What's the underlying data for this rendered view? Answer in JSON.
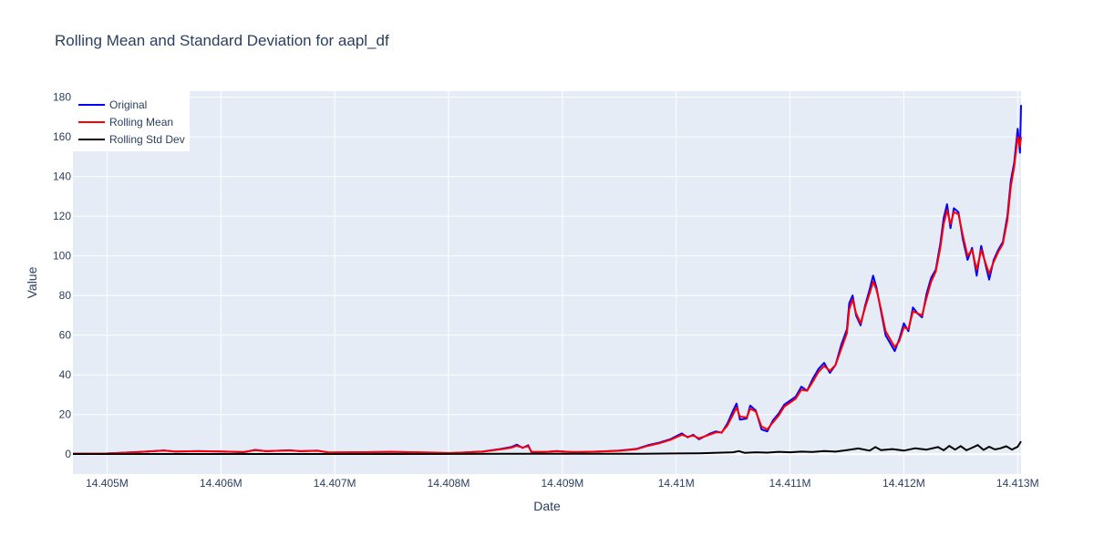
{
  "chart_data": {
    "type": "line",
    "title": "Rolling Mean and Standard Deviation for aapl_df",
    "xlabel": "Date",
    "ylabel": "Value",
    "xlim": [
      14404700,
      14413030
    ],
    "ylim": [
      -10,
      183
    ],
    "x_ticks": [
      {
        "value": 14405000,
        "label": "14.405M"
      },
      {
        "value": 14406000,
        "label": "14.406M"
      },
      {
        "value": 14407000,
        "label": "14.407M"
      },
      {
        "value": 14408000,
        "label": "14.408M"
      },
      {
        "value": 14409000,
        "label": "14.409M"
      },
      {
        "value": 14410000,
        "label": "14.41M"
      },
      {
        "value": 14411000,
        "label": "14.411M"
      },
      {
        "value": 14412000,
        "label": "14.412M"
      },
      {
        "value": 14413000,
        "label": "14.413M"
      }
    ],
    "y_ticks": [
      {
        "value": 0,
        "label": "0"
      },
      {
        "value": 20,
        "label": "20"
      },
      {
        "value": 40,
        "label": "40"
      },
      {
        "value": 60,
        "label": "60"
      },
      {
        "value": 80,
        "label": "80"
      },
      {
        "value": 100,
        "label": "100"
      },
      {
        "value": 120,
        "label": "120"
      },
      {
        "value": 140,
        "label": "140"
      },
      {
        "value": 160,
        "label": "160"
      },
      {
        "value": 180,
        "label": "180"
      }
    ],
    "grid": true,
    "legend_position": "top-left",
    "series": [
      {
        "name": "Original",
        "color": "#0000ff",
        "points": [
          [
            14404700,
            0.3
          ],
          [
            14405000,
            0.4
          ],
          [
            14405300,
            1.2
          ],
          [
            14405500,
            1.9
          ],
          [
            14405600,
            1.3
          ],
          [
            14405800,
            1.6
          ],
          [
            14406000,
            1.4
          ],
          [
            14406200,
            1.0
          ],
          [
            14406300,
            2.2
          ],
          [
            14406400,
            1.5
          ],
          [
            14406600,
            2.0
          ],
          [
            14406700,
            1.5
          ],
          [
            14406850,
            1.8
          ],
          [
            14406950,
            0.8
          ],
          [
            14407200,
            1.0
          ],
          [
            14407500,
            1.2
          ],
          [
            14407800,
            0.8
          ],
          [
            14408000,
            0.5
          ],
          [
            14408150,
            0.9
          ],
          [
            14408300,
            1.4
          ],
          [
            14408450,
            2.6
          ],
          [
            14408550,
            3.6
          ],
          [
            14408600,
            4.8
          ],
          [
            14408650,
            3.2
          ],
          [
            14408700,
            4.5
          ],
          [
            14408730,
            0.9
          ],
          [
            14408850,
            1.1
          ],
          [
            14408950,
            1.6
          ],
          [
            14409100,
            1.0
          ],
          [
            14409300,
            1.3
          ],
          [
            14409500,
            1.8
          ],
          [
            14409650,
            2.7
          ],
          [
            14409750,
            4.5
          ],
          [
            14409850,
            5.8
          ],
          [
            14409950,
            7.6
          ],
          [
            14410050,
            10.5
          ],
          [
            14410100,
            8.5
          ],
          [
            14410150,
            9.8
          ],
          [
            14410200,
            7.5
          ],
          [
            14410300,
            10.5
          ],
          [
            14410350,
            11.5
          ],
          [
            14410400,
            10.8
          ],
          [
            14410450,
            15.5
          ],
          [
            14410500,
            22.0
          ],
          [
            14410530,
            25.5
          ],
          [
            14410560,
            17.5
          ],
          [
            14410620,
            18.0
          ],
          [
            14410650,
            24.5
          ],
          [
            14410700,
            22.0
          ],
          [
            14410750,
            12.5
          ],
          [
            14410800,
            11.5
          ],
          [
            14410850,
            17.0
          ],
          [
            14410900,
            20.5
          ],
          [
            14410950,
            25.0
          ],
          [
            14411000,
            27.0
          ],
          [
            14411050,
            29.0
          ],
          [
            14411100,
            34.0
          ],
          [
            14411150,
            32.0
          ],
          [
            14411200,
            38.0
          ],
          [
            14411250,
            43.0
          ],
          [
            14411300,
            46.0
          ],
          [
            14411350,
            41.0
          ],
          [
            14411400,
            45.0
          ],
          [
            14411450,
            55.0
          ],
          [
            14411500,
            63.0
          ],
          [
            14411520,
            76.0
          ],
          [
            14411550,
            80.0
          ],
          [
            14411580,
            70.0
          ],
          [
            14411620,
            65.0
          ],
          [
            14411660,
            75.0
          ],
          [
            14411700,
            83.0
          ],
          [
            14411730,
            90.0
          ],
          [
            14411760,
            84.0
          ],
          [
            14411800,
            72.0
          ],
          [
            14411840,
            60.0
          ],
          [
            14411880,
            56.0
          ],
          [
            14411920,
            52.0
          ],
          [
            14411960,
            58.0
          ],
          [
            14412000,
            66.0
          ],
          [
            14412040,
            62.0
          ],
          [
            14412080,
            74.0
          ],
          [
            14412120,
            71.0
          ],
          [
            14412160,
            69.0
          ],
          [
            14412200,
            81.0
          ],
          [
            14412240,
            89.0
          ],
          [
            14412280,
            93.0
          ],
          [
            14412320,
            106.0
          ],
          [
            14412350,
            119.0
          ],
          [
            14412380,
            126.0
          ],
          [
            14412410,
            114.0
          ],
          [
            14412440,
            124.0
          ],
          [
            14412480,
            122.0
          ],
          [
            14412520,
            108.0
          ],
          [
            14412560,
            98.0
          ],
          [
            14412600,
            104.0
          ],
          [
            14412640,
            90.0
          ],
          [
            14412680,
            105.0
          ],
          [
            14412720,
            95.0
          ],
          [
            14412750,
            88.0
          ],
          [
            14412790,
            98.0
          ],
          [
            14412830,
            103.0
          ],
          [
            14412870,
            107.0
          ],
          [
            14412910,
            120.0
          ],
          [
            14412940,
            138.0
          ],
          [
            14412970,
            147.0
          ],
          [
            14413000,
            164.0
          ],
          [
            14413020,
            152.0
          ],
          [
            14413030,
            176.0
          ]
        ]
      },
      {
        "name": "Rolling Mean",
        "color": "#ff0000",
        "points": [
          [
            14404700,
            0.3
          ],
          [
            14405000,
            0.4
          ],
          [
            14405300,
            1.1
          ],
          [
            14405500,
            1.8
          ],
          [
            14405600,
            1.4
          ],
          [
            14405800,
            1.5
          ],
          [
            14406000,
            1.4
          ],
          [
            14406200,
            1.1
          ],
          [
            14406300,
            2.0
          ],
          [
            14406400,
            1.6
          ],
          [
            14406600,
            1.9
          ],
          [
            14406700,
            1.6
          ],
          [
            14406850,
            1.7
          ],
          [
            14406950,
            0.9
          ],
          [
            14407200,
            1.0
          ],
          [
            14407500,
            1.2
          ],
          [
            14407800,
            0.9
          ],
          [
            14408000,
            0.6
          ],
          [
            14408150,
            0.9
          ],
          [
            14408300,
            1.3
          ],
          [
            14408450,
            2.4
          ],
          [
            14408550,
            3.3
          ],
          [
            14408600,
            4.2
          ],
          [
            14408650,
            3.4
          ],
          [
            14408700,
            4.0
          ],
          [
            14408730,
            1.2
          ],
          [
            14408850,
            1.2
          ],
          [
            14408950,
            1.5
          ],
          [
            14409100,
            1.1
          ],
          [
            14409300,
            1.3
          ],
          [
            14409500,
            1.7
          ],
          [
            14409650,
            2.5
          ],
          [
            14409750,
            4.2
          ],
          [
            14409850,
            5.5
          ],
          [
            14409950,
            7.3
          ],
          [
            14410050,
            9.8
          ],
          [
            14410100,
            8.8
          ],
          [
            14410150,
            9.4
          ],
          [
            14410200,
            8.0
          ],
          [
            14410300,
            10.0
          ],
          [
            14410350,
            11.0
          ],
          [
            14410400,
            11.0
          ],
          [
            14410450,
            14.5
          ],
          [
            14410500,
            20.0
          ],
          [
            14410530,
            23.5
          ],
          [
            14410560,
            19.0
          ],
          [
            14410620,
            18.5
          ],
          [
            14410650,
            23.0
          ],
          [
            14410700,
            21.5
          ],
          [
            14410750,
            14.0
          ],
          [
            14410800,
            12.5
          ],
          [
            14410850,
            16.0
          ],
          [
            14410900,
            19.5
          ],
          [
            14410950,
            24.0
          ],
          [
            14411000,
            26.0
          ],
          [
            14411050,
            28.0
          ],
          [
            14411100,
            32.5
          ],
          [
            14411150,
            32.0
          ],
          [
            14411200,
            36.5
          ],
          [
            14411250,
            41.5
          ],
          [
            14411300,
            44.5
          ],
          [
            14411350,
            42.0
          ],
          [
            14411400,
            45.0
          ],
          [
            14411450,
            53.0
          ],
          [
            14411500,
            61.0
          ],
          [
            14411520,
            73.0
          ],
          [
            14411550,
            78.0
          ],
          [
            14411580,
            71.0
          ],
          [
            14411620,
            66.0
          ],
          [
            14411660,
            74.0
          ],
          [
            14411700,
            81.0
          ],
          [
            14411730,
            87.0
          ],
          [
            14411760,
            83.0
          ],
          [
            14411800,
            73.0
          ],
          [
            14411840,
            62.0
          ],
          [
            14411880,
            58.0
          ],
          [
            14411920,
            54.0
          ],
          [
            14411960,
            57.0
          ],
          [
            14412000,
            64.0
          ],
          [
            14412040,
            63.0
          ],
          [
            14412080,
            72.0
          ],
          [
            14412120,
            71.0
          ],
          [
            14412160,
            70.0
          ],
          [
            14412200,
            79.0
          ],
          [
            14412240,
            87.0
          ],
          [
            14412280,
            92.0
          ],
          [
            14412320,
            104.0
          ],
          [
            14412350,
            116.0
          ],
          [
            14412380,
            123.0
          ],
          [
            14412410,
            116.0
          ],
          [
            14412440,
            122.0
          ],
          [
            14412480,
            121.0
          ],
          [
            14412520,
            110.0
          ],
          [
            14412560,
            100.0
          ],
          [
            14412600,
            103.0
          ],
          [
            14412640,
            93.0
          ],
          [
            14412680,
            103.0
          ],
          [
            14412720,
            96.0
          ],
          [
            14412750,
            91.0
          ],
          [
            14412790,
            97.0
          ],
          [
            14412830,
            102.0
          ],
          [
            14412870,
            106.0
          ],
          [
            14412910,
            118.0
          ],
          [
            14412940,
            135.0
          ],
          [
            14412970,
            145.0
          ],
          [
            14413000,
            160.0
          ],
          [
            14413020,
            155.0
          ],
          [
            14413030,
            160.0
          ]
        ]
      },
      {
        "name": "Rolling Std Dev",
        "color": "#000000",
        "points": [
          [
            14404700,
            0.1
          ],
          [
            14405500,
            0.1
          ],
          [
            14406500,
            0.1
          ],
          [
            14407500,
            0.1
          ],
          [
            14408500,
            0.2
          ],
          [
            14409000,
            0.2
          ],
          [
            14409700,
            0.2
          ],
          [
            14410000,
            0.4
          ],
          [
            14410200,
            0.5
          ],
          [
            14410400,
            0.8
          ],
          [
            14410500,
            1.0
          ],
          [
            14410550,
            1.6
          ],
          [
            14410600,
            0.7
          ],
          [
            14410700,
            1.0
          ],
          [
            14410800,
            0.8
          ],
          [
            14410900,
            1.2
          ],
          [
            14411000,
            1.0
          ],
          [
            14411100,
            1.3
          ],
          [
            14411200,
            1.1
          ],
          [
            14411300,
            1.6
          ],
          [
            14411400,
            1.3
          ],
          [
            14411500,
            2.1
          ],
          [
            14411600,
            2.9
          ],
          [
            14411700,
            1.8
          ],
          [
            14411750,
            3.6
          ],
          [
            14411800,
            2.1
          ],
          [
            14411900,
            2.6
          ],
          [
            14412000,
            1.8
          ],
          [
            14412100,
            3.0
          ],
          [
            14412200,
            2.3
          ],
          [
            14412300,
            3.6
          ],
          [
            14412350,
            2.0
          ],
          [
            14412400,
            4.2
          ],
          [
            14412450,
            2.3
          ],
          [
            14412500,
            4.1
          ],
          [
            14412550,
            2.0
          ],
          [
            14412600,
            3.3
          ],
          [
            14412650,
            4.6
          ],
          [
            14412700,
            2.2
          ],
          [
            14412750,
            3.8
          ],
          [
            14412800,
            2.4
          ],
          [
            14412850,
            3.0
          ],
          [
            14412900,
            4.0
          ],
          [
            14412950,
            2.3
          ],
          [
            14413000,
            3.8
          ],
          [
            14413030,
            6.5
          ]
        ]
      }
    ]
  }
}
